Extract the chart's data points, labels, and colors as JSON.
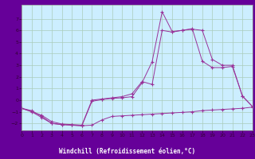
{
  "background_color": "#c8eee8",
  "plot_bg_color": "#cceeff",
  "line_color": "#993399",
  "xlabel_bg": "#660099",
  "xlabel_fg": "#ffffff",
  "xlim": [
    0,
    23
  ],
  "ylim": [
    -2.6,
    8.2
  ],
  "xticks": [
    0,
    1,
    2,
    3,
    4,
    5,
    6,
    7,
    8,
    9,
    10,
    11,
    12,
    13,
    14,
    15,
    16,
    17,
    18,
    19,
    20,
    21,
    22,
    23
  ],
  "yticks": [
    -2,
    -1,
    0,
    1,
    2,
    3,
    4,
    5,
    6,
    7
  ],
  "xlabel": "Windchill (Refroidissement éolien,°C)",
  "grid_color": "#aaccbb",
  "line1_x": [
    0,
    1,
    2,
    3,
    4,
    5,
    6,
    7,
    8,
    9,
    10,
    11,
    12,
    13,
    14,
    15,
    16,
    17,
    18,
    19,
    20,
    21,
    22,
    23
  ],
  "line1_y": [
    -0.7,
    -1.0,
    -1.5,
    -2.0,
    -2.1,
    -2.15,
    -2.2,
    -2.15,
    -1.7,
    -1.4,
    -1.35,
    -1.3,
    -1.25,
    -1.2,
    -1.15,
    -1.1,
    -1.05,
    -1.0,
    -0.9,
    -0.85,
    -0.8,
    -0.75,
    -0.7,
    -0.6
  ],
  "line2_x": [
    0,
    1,
    2,
    3,
    4,
    5,
    6,
    7,
    8,
    9,
    10,
    11,
    12,
    13,
    14,
    15,
    16,
    17,
    18,
    19,
    20,
    21,
    22,
    23
  ],
  "line2_y": [
    -0.7,
    -0.9,
    -1.4,
    -2.0,
    -2.1,
    -2.15,
    -2.2,
    -0.1,
    0.05,
    0.15,
    0.2,
    0.3,
    1.5,
    3.3,
    7.6,
    5.9,
    6.0,
    6.1,
    6.0,
    3.5,
    3.0,
    3.0,
    0.35,
    -0.55
  ],
  "line3_x": [
    0,
    2,
    3,
    4,
    5,
    6,
    7,
    8,
    9,
    10,
    11,
    12,
    13,
    14,
    15,
    16,
    17,
    18,
    19,
    20,
    21,
    22,
    23
  ],
  "line3_y": [
    -0.7,
    -1.3,
    -1.85,
    -2.05,
    -2.1,
    -2.15,
    0.0,
    0.1,
    0.2,
    0.3,
    0.55,
    1.6,
    1.35,
    6.0,
    5.85,
    6.0,
    6.15,
    3.35,
    2.8,
    2.8,
    2.9,
    0.35,
    -0.55
  ]
}
